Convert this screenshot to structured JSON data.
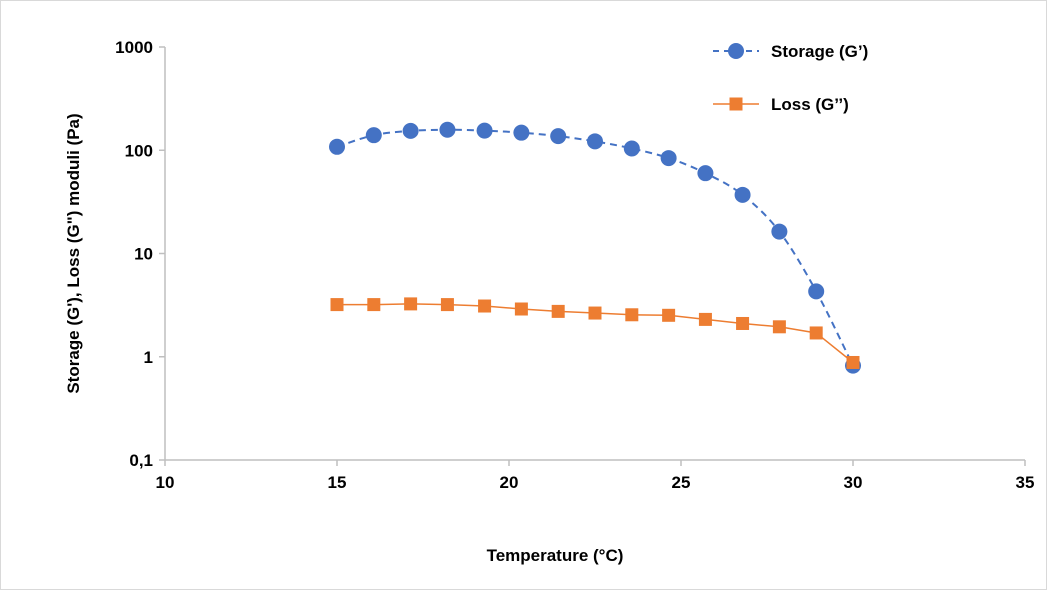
{
  "chart_data": {
    "type": "scatter",
    "title": "",
    "xlabel": "Temperature (°C)",
    "ylabel": "Storage (G'),  Loss (G\")  moduli (Pa)",
    "xlim": [
      10,
      35
    ],
    "xticks": [
      10,
      15,
      20,
      25,
      30,
      35
    ],
    "ylim": [
      0.1,
      1000
    ],
    "yscale": "log",
    "ytick_labels": [
      "0,1",
      "1",
      "10",
      "100",
      "1000"
    ],
    "grid": false,
    "legend_position": "top-right",
    "series": [
      {
        "name": "Storage (G’)",
        "color": "#4472c4",
        "line_style": "dashed",
        "marker": "circle",
        "x": [
          15,
          16.07,
          17.14,
          18.21,
          19.29,
          20.36,
          21.43,
          22.5,
          23.57,
          24.64,
          25.71,
          26.79,
          27.86,
          28.93,
          30
        ],
        "y": [
          108,
          140,
          154,
          158,
          155,
          148,
          137,
          122,
          104,
          84,
          60,
          37,
          16.3,
          4.3,
          0.82
        ]
      },
      {
        "name": "Loss (G’’)",
        "color": "#ed7d31",
        "line_style": "solid",
        "marker": "square",
        "x": [
          15,
          16.07,
          17.14,
          18.21,
          19.29,
          20.36,
          21.43,
          22.5,
          23.57,
          24.64,
          25.71,
          26.79,
          27.86,
          28.93,
          30
        ],
        "y": [
          3.2,
          3.2,
          3.25,
          3.2,
          3.1,
          2.9,
          2.75,
          2.65,
          2.55,
          2.52,
          2.3,
          2.1,
          1.95,
          1.7,
          0.88
        ]
      }
    ]
  }
}
